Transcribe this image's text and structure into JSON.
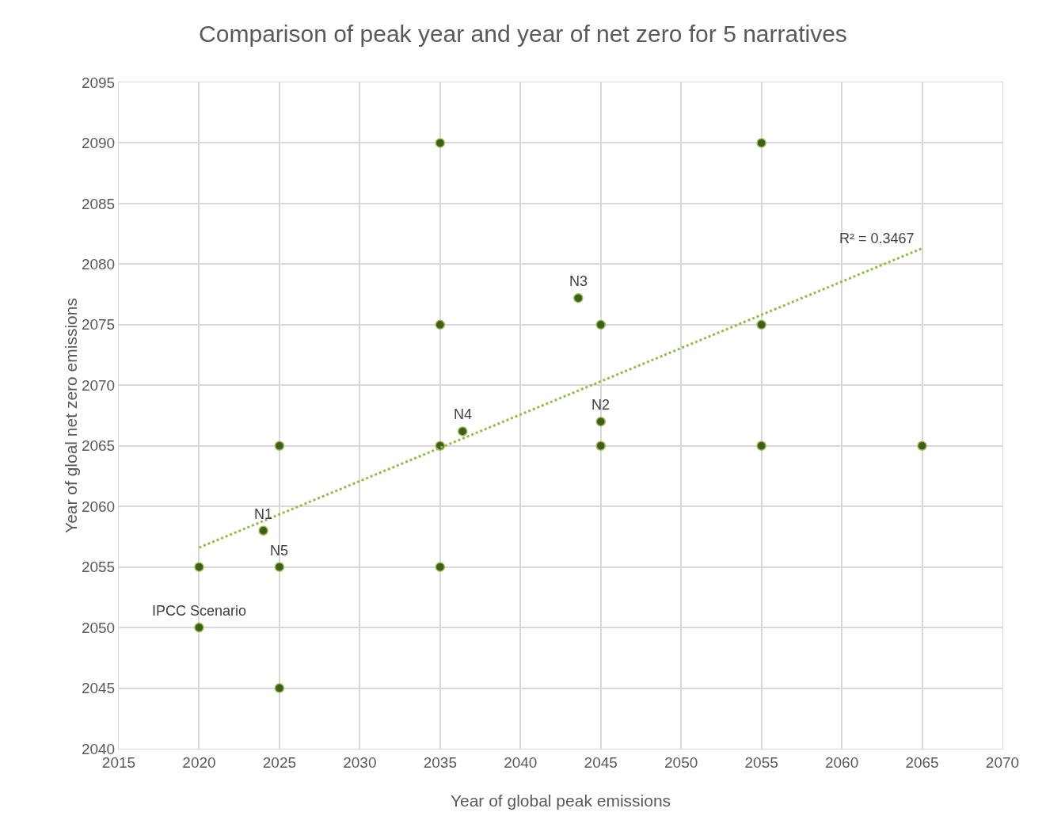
{
  "chart_data": {
    "type": "scatter",
    "title": "Comparison of peak year and year of net zero for 5 narratives",
    "xlabel": "Year of global peak emissions",
    "ylabel": "Year of gloal net zero emissions",
    "xlim": [
      2015,
      2070
    ],
    "xticks": [
      2015,
      2020,
      2025,
      2030,
      2035,
      2040,
      2045,
      2050,
      2055,
      2060,
      2065,
      2070
    ],
    "ylim": [
      2040,
      2095
    ],
    "yticks": [
      2040,
      2045,
      2050,
      2055,
      2060,
      2065,
      2070,
      2075,
      2080,
      2085,
      2090,
      2095
    ],
    "grid": true,
    "legend": false,
    "series": [
      {
        "marker": "circle",
        "color": "#3f5e1a",
        "x": [
          2020,
          2020,
          2025,
          2025,
          2025,
          2024,
          2035,
          2035,
          2035,
          2035,
          2036.4,
          2043.6,
          2045,
          2045,
          2045,
          2055,
          2055,
          2055,
          2065
        ],
        "values": [
          2055,
          2050,
          2065,
          2055,
          2045,
          2058,
          2090,
          2075,
          2065,
          2055,
          2066.2,
          2077.2,
          2075,
          2067,
          2065,
          2090,
          2075,
          2065,
          2065
        ]
      },
      {
        "type": "line",
        "marker": "none",
        "color": "#8fbc4a",
        "line_style": "dotted",
        "x": [
          2020,
          2065
        ],
        "values": [
          2056.6,
          2081.3
        ]
      }
    ],
    "annotations": [
      {
        "text": "IPCC Scenario",
        "x": 2020,
        "y": 2050
      },
      {
        "text": "N1",
        "x": 2024,
        "y": 2058
      },
      {
        "text": "N5",
        "x": 2025,
        "y": 2055
      },
      {
        "text": "N4",
        "x": 2036.4,
        "y": 2066.2
      },
      {
        "text": "N3",
        "x": 2043.6,
        "y": 2077.2
      },
      {
        "text": "N2",
        "x": 2045,
        "y": 2067
      },
      "R² = 0.3467"
    ]
  }
}
